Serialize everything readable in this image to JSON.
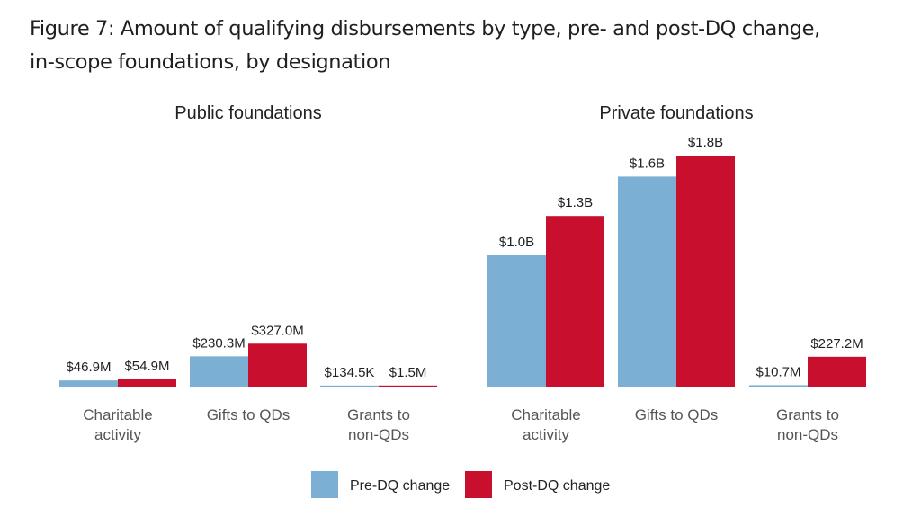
{
  "title_line1": "Figure 7:  Amount of qualifying disbursements by type, pre- and post-DQ change,",
  "title_line2": "in-scope foundations, by designation",
  "chart_data": {
    "type": "bar",
    "title": "Figure 7: Amount of qualifying disbursements by type, pre- and post-DQ change, in-scope foundations, by designation",
    "xlabel": "",
    "ylabel": "",
    "unit": "USD billions",
    "ylim": [
      0,
      1.9
    ],
    "grid": false,
    "legend_position": "bottom-center",
    "colors": {
      "pre": "#7bafd4",
      "post": "#c8102e"
    },
    "legend": [
      "Pre-DQ change",
      "Post-DQ change"
    ],
    "panels": [
      {
        "title": "Public foundations",
        "categories": [
          [
            "Charitable",
            "activity"
          ],
          [
            "Gifts to QDs"
          ],
          [
            "Grants to",
            "non-QDs"
          ]
        ],
        "series": [
          {
            "name": "Pre-DQ change",
            "values": [
              0.0469,
              0.2303,
              0.0001345
            ],
            "labels": [
              "$46.9M",
              "$230.3M",
              "$134.5K"
            ]
          },
          {
            "name": "Post-DQ change",
            "values": [
              0.0549,
              0.327,
              0.0015
            ],
            "labels": [
              "$54.9M",
              "$327.0M",
              "$1.5M"
            ]
          }
        ]
      },
      {
        "title": "Private foundations",
        "categories": [
          [
            "Charitable",
            "activity"
          ],
          [
            "Gifts to QDs"
          ],
          [
            "Grants to",
            "non-QDs"
          ]
        ],
        "series": [
          {
            "name": "Pre-DQ change",
            "values": [
              1.0,
              1.6,
              0.0107
            ],
            "labels": [
              "$1.0B",
              "$1.6B",
              "$10.7M"
            ]
          },
          {
            "name": "Post-DQ change",
            "values": [
              1.3,
              1.76,
              0.2272
            ],
            "labels": [
              "$1.3B",
              "$1.8B",
              "$227.2M"
            ]
          }
        ]
      }
    ]
  }
}
